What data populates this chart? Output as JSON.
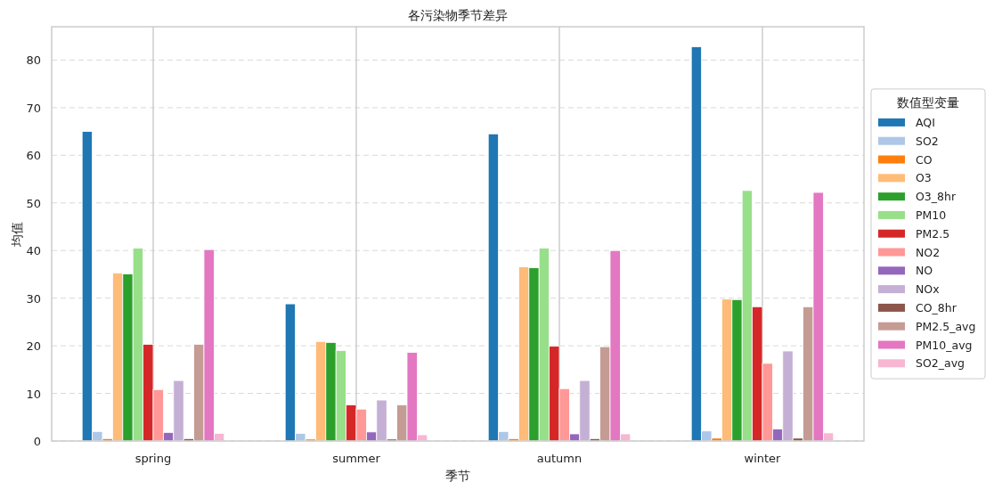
{
  "chart_data": {
    "type": "bar",
    "title": "各污染物季节差异",
    "xlabel": "季节",
    "ylabel": "均值",
    "legend_title": "数值型变量",
    "categories": [
      "spring",
      "summer",
      "autumn",
      "winter"
    ],
    "ylim": [
      0,
      87
    ],
    "yticks": [
      0,
      10,
      20,
      30,
      40,
      50,
      60,
      70,
      80
    ],
    "grid": true,
    "legend": "right",
    "series": [
      {
        "name": "AQI",
        "color": "#1f77b4",
        "values": [
          65.0,
          28.8,
          64.5,
          82.8
        ]
      },
      {
        "name": "SO2",
        "color": "#aec7e8",
        "values": [
          2.0,
          1.6,
          2.0,
          2.1
        ]
      },
      {
        "name": "CO",
        "color": "#ff7f0e",
        "values": [
          0.5,
          0.4,
          0.5,
          0.6
        ]
      },
      {
        "name": "O3",
        "color": "#ffbb78",
        "values": [
          35.3,
          20.9,
          36.6,
          29.8
        ]
      },
      {
        "name": "O3_8hr",
        "color": "#2ca02c",
        "values": [
          35.1,
          20.7,
          36.4,
          29.7
        ]
      },
      {
        "name": "PM10",
        "color": "#98df8a",
        "values": [
          40.5,
          19.0,
          40.5,
          52.6
        ]
      },
      {
        "name": "PM2.5",
        "color": "#d62728",
        "values": [
          20.3,
          7.6,
          19.9,
          28.2
        ]
      },
      {
        "name": "NO2",
        "color": "#ff9896",
        "values": [
          10.8,
          6.7,
          11.0,
          16.3
        ]
      },
      {
        "name": "NO",
        "color": "#9467bd",
        "values": [
          1.8,
          1.9,
          1.5,
          2.5
        ]
      },
      {
        "name": "NOx",
        "color": "#c5b0d5",
        "values": [
          12.7,
          8.6,
          12.7,
          18.9
        ]
      },
      {
        "name": "CO_8hr",
        "color": "#8c564b",
        "values": [
          0.5,
          0.4,
          0.5,
          0.6
        ]
      },
      {
        "name": "PM2.5_avg",
        "color": "#c49c94",
        "values": [
          20.3,
          7.6,
          19.8,
          28.2
        ]
      },
      {
        "name": "PM10_avg",
        "color": "#e377c2",
        "values": [
          40.2,
          18.6,
          40.0,
          52.2
        ]
      },
      {
        "name": "SO2_avg",
        "color": "#f7b6d2",
        "values": [
          1.6,
          1.3,
          1.5,
          1.7
        ]
      }
    ]
  }
}
